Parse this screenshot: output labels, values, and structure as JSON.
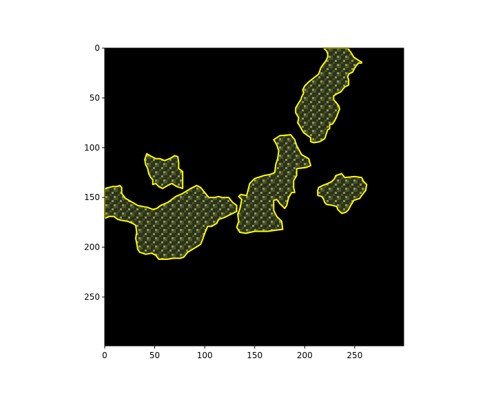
{
  "plot": {
    "type": "image",
    "xlim": [
      0,
      299
    ],
    "ylim": [
      299,
      0
    ],
    "x_ticks": [
      {
        "value": 0,
        "label": "0"
      },
      {
        "value": 50,
        "label": "50"
      },
      {
        "value": 100,
        "label": "100"
      },
      {
        "value": 150,
        "label": "150"
      },
      {
        "value": 200,
        "label": "200"
      },
      {
        "value": 250,
        "label": "250"
      }
    ],
    "y_ticks": [
      {
        "value": 0,
        "label": "0"
      },
      {
        "value": 50,
        "label": "50"
      },
      {
        "value": 100,
        "label": "100"
      },
      {
        "value": 150,
        "label": "150"
      },
      {
        "value": 200,
        "label": "200"
      },
      {
        "value": 250,
        "label": "250"
      }
    ]
  },
  "colors": {
    "background": "#000000",
    "segment_outline": "#ffff00",
    "vegetation_dark": "#2c3318",
    "vegetation_mid": "#4a5529",
    "vegetation_light": "#8a9460"
  },
  "segments": [
    {
      "name": "segment-top-right-arm",
      "points": [
        [
          219,
          0
        ],
        [
          243,
          0
        ],
        [
          246,
          4
        ],
        [
          249,
          9
        ],
        [
          252,
          11
        ],
        [
          255,
          13
        ],
        [
          257,
          14
        ],
        [
          257,
          15
        ],
        [
          254,
          15
        ],
        [
          252,
          17
        ],
        [
          250,
          20
        ],
        [
          249,
          22
        ],
        [
          248,
          24
        ],
        [
          244,
          26
        ],
        [
          243,
          29
        ],
        [
          244,
          32
        ],
        [
          244,
          37
        ],
        [
          240,
          39
        ],
        [
          236,
          44
        ],
        [
          232,
          46
        ],
        [
          229,
          48
        ],
        [
          229,
          52
        ],
        [
          231,
          54
        ],
        [
          234,
          58
        ],
        [
          235,
          61
        ],
        [
          233,
          66
        ],
        [
          232,
          69
        ],
        [
          230,
          73
        ],
        [
          228,
          76
        ],
        [
          225,
          77
        ],
        [
          225,
          81
        ],
        [
          223,
          82
        ],
        [
          220,
          91
        ],
        [
          215,
          94
        ],
        [
          209,
          95
        ],
        [
          206,
          94
        ],
        [
          206,
          90
        ],
        [
          199,
          85
        ],
        [
          196,
          80
        ],
        [
          195,
          78
        ],
        [
          193,
          75
        ],
        [
          194,
          70
        ],
        [
          191,
          65
        ],
        [
          191,
          60
        ],
        [
          194,
          55
        ],
        [
          196,
          52
        ],
        [
          197,
          49
        ],
        [
          199,
          45
        ],
        [
          198,
          42
        ],
        [
          200,
          38
        ],
        [
          204,
          34
        ],
        [
          209,
          30
        ],
        [
          214,
          26
        ],
        [
          215,
          23
        ],
        [
          216,
          20
        ],
        [
          218,
          17
        ],
        [
          221,
          13
        ],
        [
          223,
          9
        ],
        [
          223,
          6
        ],
        [
          222,
          3
        ]
      ]
    },
    {
      "name": "segment-center-arm",
      "points": [
        [
          175,
          88
        ],
        [
          186,
          87
        ],
        [
          190,
          92
        ],
        [
          192,
          98
        ],
        [
          197,
          107
        ],
        [
          204,
          111
        ],
        [
          206,
          118
        ],
        [
          201,
          120
        ],
        [
          192,
          121
        ],
        [
          192,
          128
        ],
        [
          189,
          133
        ],
        [
          189,
          140
        ],
        [
          190,
          145
        ],
        [
          187,
          145
        ],
        [
          184,
          150
        ],
        [
          182,
          158
        ],
        [
          180,
          161
        ],
        [
          175,
          156
        ],
        [
          172,
          152
        ],
        [
          169,
          153
        ],
        [
          169,
          163
        ],
        [
          172,
          169
        ],
        [
          177,
          174
        ],
        [
          178,
          182
        ],
        [
          170,
          183
        ],
        [
          163,
          184
        ],
        [
          150,
          184
        ],
        [
          141,
          186
        ],
        [
          135,
          185
        ],
        [
          132,
          180
        ],
        [
          134,
          174
        ],
        [
          133,
          167
        ],
        [
          135,
          162
        ],
        [
          137,
          152
        ],
        [
          134,
          149
        ],
        [
          136,
          147
        ],
        [
          142,
          148
        ],
        [
          145,
          136
        ],
        [
          150,
          131
        ],
        [
          159,
          128
        ],
        [
          165,
          127
        ],
        [
          170,
          125
        ],
        [
          171,
          117
        ],
        [
          173,
          111
        ],
        [
          174,
          103
        ],
        [
          172,
          97
        ],
        [
          169,
          92
        ]
      ]
    },
    {
      "name": "segment-upper-left",
      "points": [
        [
          42,
          106
        ],
        [
          47,
          109
        ],
        [
          51,
          111
        ],
        [
          55,
          111
        ],
        [
          60,
          113
        ],
        [
          65,
          111
        ],
        [
          70,
          108
        ],
        [
          73,
          109
        ],
        [
          74,
          115
        ],
        [
          74,
          121
        ],
        [
          78,
          124
        ],
        [
          78,
          134
        ],
        [
          78,
          141
        ],
        [
          72,
          139
        ],
        [
          67,
          136
        ],
        [
          63,
          138
        ],
        [
          58,
          141
        ],
        [
          54,
          139
        ],
        [
          51,
          136
        ],
        [
          48,
          137
        ],
        [
          48,
          132
        ],
        [
          46,
          130
        ],
        [
          44,
          126
        ],
        [
          43,
          121
        ],
        [
          41,
          117
        ],
        [
          40,
          112
        ]
      ]
    },
    {
      "name": "segment-lower-left",
      "points": [
        [
          0,
          141
        ],
        [
          8,
          139
        ],
        [
          12,
          139
        ],
        [
          15,
          138
        ],
        [
          17,
          140
        ],
        [
          17,
          146
        ],
        [
          21,
          151
        ],
        [
          28,
          155
        ],
        [
          33,
          158
        ],
        [
          38,
          159
        ],
        [
          43,
          160
        ],
        [
          48,
          162
        ],
        [
          52,
          161
        ],
        [
          56,
          158
        ],
        [
          63,
          155
        ],
        [
          71,
          149
        ],
        [
          78,
          146
        ],
        [
          86,
          141
        ],
        [
          92,
          138
        ],
        [
          96,
          140
        ],
        [
          100,
          145
        ],
        [
          104,
          150
        ],
        [
          110,
          150
        ],
        [
          114,
          149
        ],
        [
          117,
          150
        ],
        [
          121,
          150
        ],
        [
          124,
          150
        ],
        [
          128,
          155
        ],
        [
          132,
          158
        ],
        [
          132,
          164
        ],
        [
          128,
          166
        ],
        [
          120,
          170
        ],
        [
          114,
          172
        ],
        [
          112,
          176
        ],
        [
          107,
          179
        ],
        [
          103,
          179
        ],
        [
          100,
          186
        ],
        [
          98,
          192
        ],
        [
          96,
          197
        ],
        [
          93,
          199
        ],
        [
          88,
          202
        ],
        [
          83,
          205
        ],
        [
          79,
          210
        ],
        [
          76,
          211
        ],
        [
          69,
          211
        ],
        [
          63,
          212
        ],
        [
          54,
          212
        ],
        [
          51,
          208
        ],
        [
          47,
          206
        ],
        [
          41,
          207
        ],
        [
          35,
          205
        ],
        [
          33,
          202
        ],
        [
          32,
          196
        ],
        [
          31,
          191
        ],
        [
          32,
          185
        ],
        [
          31,
          178
        ],
        [
          28,
          176
        ],
        [
          23,
          174
        ],
        [
          17,
          173
        ],
        [
          13,
          172
        ],
        [
          9,
          169
        ],
        [
          5,
          169
        ],
        [
          0,
          171
        ]
      ]
    },
    {
      "name": "segment-right-blob",
      "points": [
        [
          231,
          128
        ],
        [
          237,
          126
        ],
        [
          240,
          130
        ],
        [
          250,
          129
        ],
        [
          257,
          130
        ],
        [
          259,
          134
        ],
        [
          262,
          137
        ],
        [
          261,
          143
        ],
        [
          257,
          148
        ],
        [
          255,
          151
        ],
        [
          249,
          153
        ],
        [
          246,
          158
        ],
        [
          244,
          162
        ],
        [
          241,
          165
        ],
        [
          237,
          166
        ],
        [
          233,
          162
        ],
        [
          232,
          159
        ],
        [
          228,
          158
        ],
        [
          222,
          157
        ],
        [
          220,
          155
        ],
        [
          219,
          152
        ],
        [
          217,
          149
        ],
        [
          213,
          148
        ],
        [
          213,
          143
        ],
        [
          214,
          140
        ],
        [
          218,
          138
        ],
        [
          223,
          136
        ],
        [
          227,
          134
        ],
        [
          230,
          131
        ]
      ]
    }
  ]
}
